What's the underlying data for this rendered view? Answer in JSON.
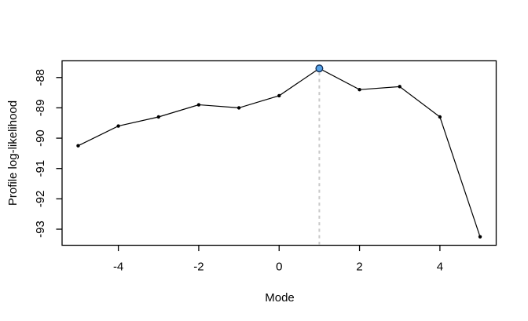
{
  "chart_data": {
    "type": "line",
    "title": "",
    "xlabel": "Mode",
    "ylabel": "Profile log-likelihood",
    "x": [
      -5,
      -4,
      -3,
      -2,
      -1,
      0,
      1,
      2,
      3,
      4,
      5
    ],
    "values": [
      -90.25,
      -89.6,
      -89.3,
      -88.9,
      -89.0,
      -88.6,
      -87.7,
      -88.4,
      -88.3,
      -89.3,
      -93.25
    ],
    "x_ticks": [
      -4,
      -2,
      0,
      2,
      4
    ],
    "y_ticks": [
      -88,
      -89,
      -90,
      -91,
      -92,
      -93
    ],
    "xlim": [
      -5.4,
      5.4
    ],
    "ylim": [
      -93.53,
      -87.45
    ],
    "grid": false,
    "legend": null,
    "max_point": {
      "x": 1,
      "value": -87.7
    },
    "vline": {
      "x": 1,
      "style": "dashed"
    },
    "colors": {
      "line": "#000000",
      "points": "#000000",
      "axis": "#000000",
      "text": "#000000",
      "background": "#ffffff",
      "max_point_fill": "#57a3e8",
      "max_point_stroke": "#14325c",
      "vline": "#c9c9c9"
    }
  }
}
